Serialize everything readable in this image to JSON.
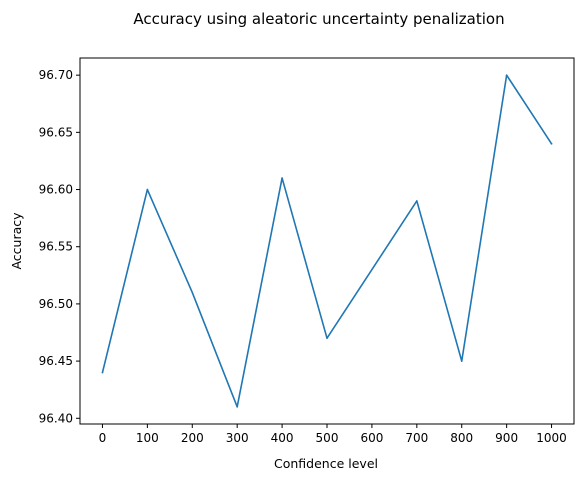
{
  "chart_data": {
    "type": "line",
    "title": "Accuracy using aleatoric uncertainty penalization",
    "xlabel": "Confidence level",
    "ylabel": "Accuracy",
    "x": [
      0,
      100,
      200,
      300,
      400,
      500,
      700,
      800,
      900,
      1000
    ],
    "series": [
      {
        "values": [
          96.44,
          96.6,
          96.51,
          96.41,
          96.61,
          96.47,
          96.59,
          96.45,
          96.7,
          96.64
        ]
      }
    ],
    "xticks": [
      "0",
      "100",
      "200",
      "300",
      "400",
      "500",
      "600",
      "700",
      "800",
      "900",
      "1000"
    ],
    "yticks": [
      "96.40",
      "96.45",
      "96.50",
      "96.55",
      "96.60",
      "96.65",
      "96.70"
    ],
    "xlim": [
      -50,
      1050
    ],
    "ylim": [
      96.395,
      96.715
    ],
    "grid": false,
    "legend": "none",
    "colors": {
      "line": "#1f77b4"
    }
  }
}
